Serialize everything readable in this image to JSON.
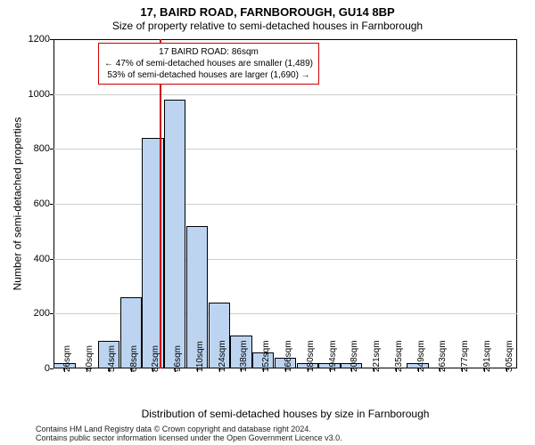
{
  "titles": {
    "main": "17, BAIRD ROAD, FARNBOROUGH, GU14 8BP",
    "sub": "Size of property relative to semi-detached houses in Farnborough"
  },
  "axes": {
    "ylabel": "Number of semi-detached properties",
    "xlabel": "Distribution of semi-detached houses by size in Farnborough",
    "ylim": [
      0,
      1200
    ],
    "ytick_step": 200,
    "yticks": [
      0,
      200,
      400,
      600,
      800,
      1000,
      1200
    ],
    "grid_color": "#cccccc"
  },
  "chart": {
    "type": "histogram",
    "bar_fill": "#bcd4f0",
    "bar_border": "#000000",
    "background_color": "#ffffff",
    "x_categories": [
      "26sqm",
      "40sqm",
      "54sqm",
      "68sqm",
      "82sqm",
      "96sqm",
      "110sqm",
      "124sqm",
      "138sqm",
      "152sqm",
      "166sqm",
      "180sqm",
      "194sqm",
      "208sqm",
      "221sqm",
      "235sqm",
      "249sqm",
      "263sqm",
      "277sqm",
      "291sqm",
      "305sqm"
    ],
    "values": [
      20,
      0,
      100,
      260,
      840,
      980,
      520,
      240,
      120,
      60,
      40,
      20,
      20,
      20,
      0,
      0,
      20,
      0,
      0,
      0,
      0
    ]
  },
  "indicator": {
    "position_sqm": 86,
    "color": "#cc0000",
    "box": {
      "line1": "17 BAIRD ROAD: 86sqm",
      "line2": "← 47% of semi-detached houses are smaller (1,489)",
      "line3": "53% of semi-detached houses are larger (1,690) →",
      "border_color": "#cc0000"
    }
  },
  "footer": {
    "line1": "Contains HM Land Registry data © Crown copyright and database right 2024.",
    "line2": "Contains public sector information licensed under the Open Government Licence v3.0."
  },
  "style": {
    "title_fontsize": 13,
    "sub_fontsize": 12,
    "axis_label_fontsize": 12,
    "tick_fontsize": 11,
    "xtick_fontsize": 10,
    "info_fontsize": 10,
    "footer_fontsize": 9,
    "font_family": "Arial"
  }
}
